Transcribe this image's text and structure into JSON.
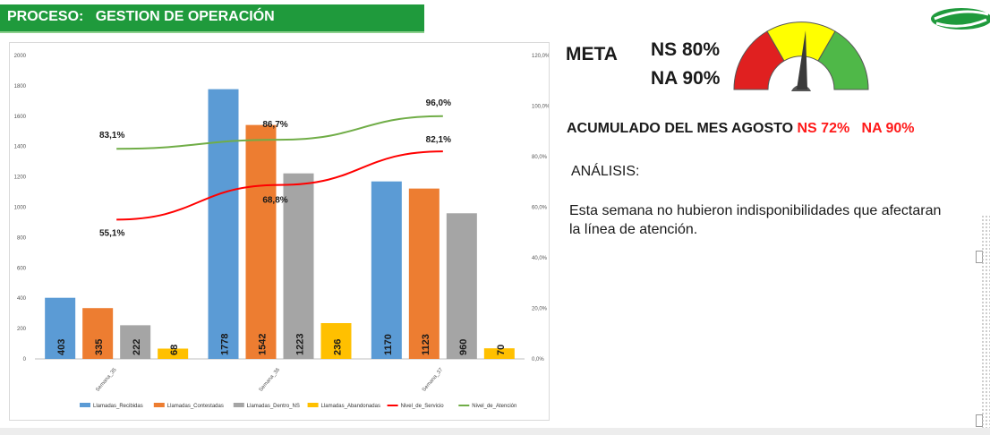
{
  "header": {
    "process_label": "PROCESO:",
    "process_name": "GESTION DE OPERACIÓN"
  },
  "colors": {
    "header_green": "#1f9a3c",
    "recibidas": "#5b9bd5",
    "contestadas": "#ed7d31",
    "dentro_ns": "#a5a5a5",
    "abandonadas": "#ffc000",
    "nivel_servicio": "#ff0000",
    "nivel_atencion": "#70ad47",
    "gauge_red": "#e02020",
    "gauge_yellow": "#ffff00",
    "gauge_green": "#4fb848"
  },
  "meta": {
    "label": "META",
    "ns": "NS 80%",
    "na": "NA 90%"
  },
  "gauge": {
    "icon": "speedometer-gauge-icon"
  },
  "acumulado": {
    "label": "ACUMULADO DEL MES AGOSTO",
    "ns": "NS 72%",
    "na": "NA 90%"
  },
  "analisis": {
    "title": "ANÁLISIS:",
    "text": "Esta semana no hubieron indisponibilidades que afectaran la línea de atención."
  },
  "chart_data": {
    "type": "bar",
    "categories": [
      "Semana_35",
      "Semana_36",
      "Semana_37"
    ],
    "series": [
      {
        "name": "Llamadas_Recibidas",
        "values": [
          403,
          1778,
          1170
        ],
        "axis": "left",
        "type": "bar"
      },
      {
        "name": "Llamadas_Contestadas",
        "values": [
          335,
          1542,
          1123
        ],
        "axis": "left",
        "type": "bar"
      },
      {
        "name": "Llamadas_Dentro_NS",
        "values": [
          222,
          1223,
          960
        ],
        "axis": "left",
        "type": "bar"
      },
      {
        "name": "Llamadas_Abandonadas",
        "values": [
          68,
          236,
          70
        ],
        "axis": "left",
        "type": "bar"
      },
      {
        "name": "Nivel_de_Servicio",
        "values": [
          55.1,
          68.8,
          82.1
        ],
        "labels": [
          "55,1%",
          "68,8%",
          "82,1%"
        ],
        "axis": "right",
        "type": "line"
      },
      {
        "name": "Nivel_de_Atención",
        "values": [
          83.1,
          86.7,
          96.0
        ],
        "labels": [
          "83,1%",
          "86,7%",
          "96,0%"
        ],
        "axis": "right",
        "type": "line"
      }
    ],
    "y_left": {
      "ylim": [
        0,
        2000
      ],
      "ticks": [
        "0",
        "200",
        "400",
        "600",
        "800",
        "1000",
        "1200",
        "1400",
        "1600",
        "1800",
        "2000"
      ]
    },
    "y_right": {
      "ylim": [
        0,
        120
      ],
      "ticks": [
        "0,0%",
        "20,0%",
        "40,0%",
        "60,0%",
        "80,0%",
        "100,0%",
        "120,0%"
      ]
    },
    "legend": "bottom",
    "grid": false
  }
}
